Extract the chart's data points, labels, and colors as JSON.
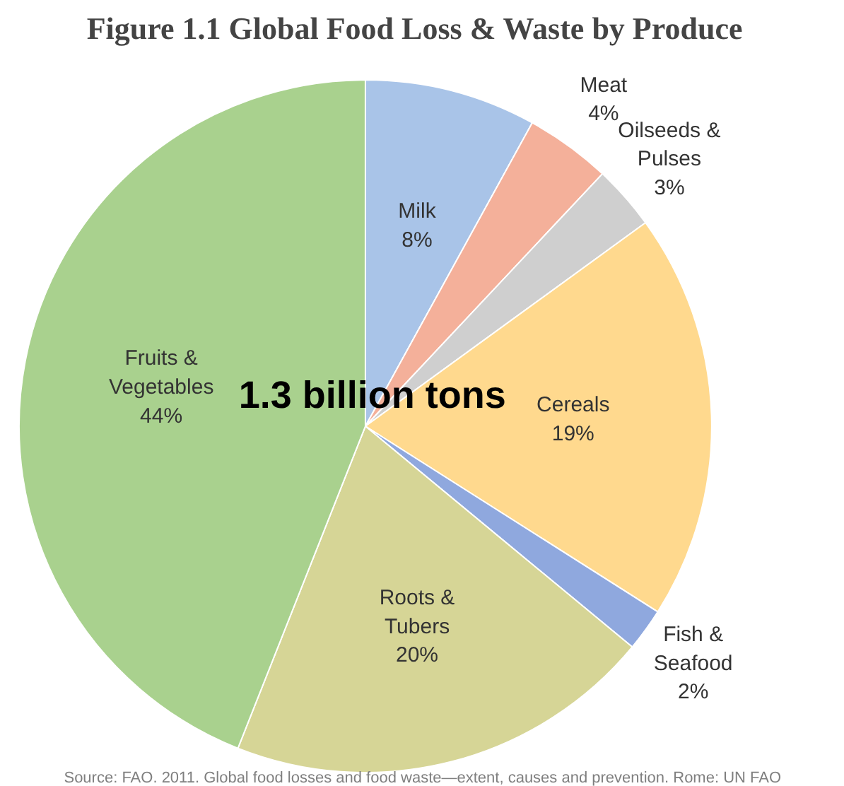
{
  "chart_data": {
    "type": "pie",
    "title": "Figure 1.1  Global Food Loss & Waste  by Produce",
    "categories": [
      "Milk",
      "Meat",
      "Oilseeds & Pulses",
      "Cereals",
      "Fish & Seafood",
      "Roots & Tubers",
      "Fruits & Vegetables"
    ],
    "values": [
      8,
      4,
      3,
      19,
      2,
      20,
      44
    ],
    "colors": [
      "#a9c4e8",
      "#f4b09a",
      "#cfcfcf",
      "#ffd98e",
      "#8fa8de",
      "#d6d596",
      "#a9d18e"
    ],
    "value_labels": [
      "8%",
      "4%",
      "3%",
      "19%",
      "2%",
      "20%",
      "44%"
    ],
    "annotations": [
      "1.3 billion tons",
      "Source: FAO. 2011. Global food losses and food waste—extent, causes and prevention. Rome: UN FAO"
    ]
  }
}
